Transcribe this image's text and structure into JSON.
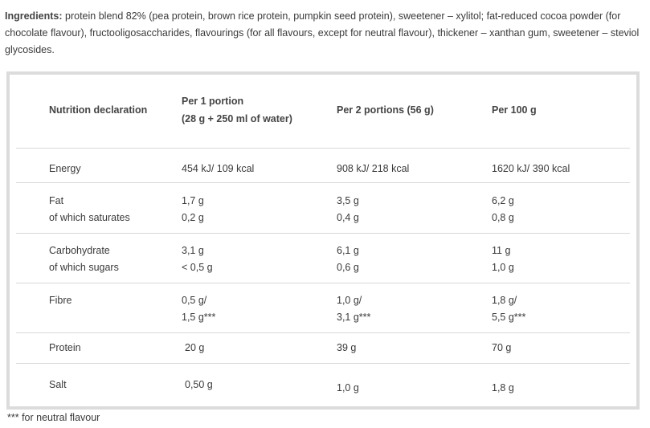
{
  "ingredients": {
    "label": "Ingredients:",
    "text": " protein blend 82% (pea protein, brown rice protein, pumpkin seed protein), sweetener – xylitol; fat-reduced cocoa powder (for chocolate flavour), fructooligosaccharides, flavourings (for all flavours, except for neutral flavour), thickener – xanthan gum, sweetener – steviol glycosides."
  },
  "table": {
    "headers": [
      "Nutrition declaration",
      "Per 1 portion",
      "(28 g + 250 ml of water)",
      "Per 2 portions (56 g)",
      "Per 100 g"
    ],
    "rows": [
      {
        "name": [
          "Energy"
        ],
        "p1": [
          "454 kJ/ 109 kcal"
        ],
        "p2": [
          "908 kJ/ 218 kcal"
        ],
        "p100": [
          "1620 kJ/ 390 kcal"
        ]
      },
      {
        "name": [
          "Fat",
          "of which saturates"
        ],
        "p1": [
          "1,7 g",
          "0,2 g"
        ],
        "p2": [
          "3,5 g",
          "0,4 g"
        ],
        "p100": [
          "6,2 g",
          "0,8 g"
        ]
      },
      {
        "name": [
          "Carbohydrate",
          "of which sugars"
        ],
        "p1": [
          "3,1 g",
          "< 0,5 g"
        ],
        "p2": [
          "6,1 g",
          "0,6 g"
        ],
        "p100": [
          "11 g",
          "1,0 g"
        ]
      },
      {
        "name": [
          "Fibre"
        ],
        "p1": [
          "0,5 g/",
          "1,5 g***"
        ],
        "p2": [
          "1,0 g/",
          "3,1 g***"
        ],
        "p100": [
          "1,8 g/",
          "5,5 g***"
        ]
      },
      {
        "name": [
          "Protein"
        ],
        "p1": [
          "20 g"
        ],
        "p2": [
          "39 g"
        ],
        "p100": [
          "70 g"
        ]
      },
      {
        "name": [
          "Salt"
        ],
        "p1": [
          "0,50 g"
        ],
        "p2": [
          "1,0 g"
        ],
        "p100": [
          "1,8 g"
        ]
      }
    ]
  },
  "footnote": "*** for neutral flavour"
}
